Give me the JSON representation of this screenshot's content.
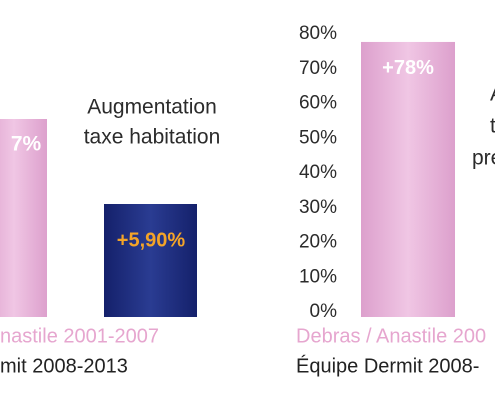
{
  "chart_data": [
    {
      "type": "bar",
      "annotation_lines": [
        "Augmentation",
        "taxe habitation"
      ],
      "bar_labels": [
        "7%",
        "+5,90%"
      ],
      "colors": [
        "#e9b5dc",
        "#1f2e7c"
      ],
      "label_colors": [
        "#ffffff",
        "#f4a428"
      ],
      "legend": [
        "nastile 2001-2007",
        "mit 2008-2013"
      ],
      "legend_colors": [
        "#e6a6cf",
        "#222222"
      ]
    },
    {
      "type": "bar",
      "categories": [
        null
      ],
      "series": [
        {
          "name": "Debras / Anastile 200",
          "color": "#e9b5dc",
          "values": [
            78
          ],
          "value_labels": [
            "+78%"
          ]
        },
        {
          "name": "Équipe Dermit 2008-",
          "color": "#1f2e7c",
          "values": [
            null
          ]
        }
      ],
      "legend_colors": [
        "#e6a6cf",
        "#222222"
      ],
      "annotation_lines": [
        "A",
        "t",
        "pre"
      ],
      "ylim": [
        0,
        80
      ],
      "yticks": [
        {
          "value": 0,
          "label": "0%"
        },
        {
          "value": 10,
          "label": "10%"
        },
        {
          "value": 20,
          "label": "20%"
        },
        {
          "value": 30,
          "label": "30%"
        },
        {
          "value": 40,
          "label": "40%"
        },
        {
          "value": 50,
          "label": "50%"
        },
        {
          "value": 60,
          "label": "60%"
        },
        {
          "value": 70,
          "label": "70%"
        },
        {
          "value": 80,
          "label": "80%"
        }
      ]
    }
  ]
}
